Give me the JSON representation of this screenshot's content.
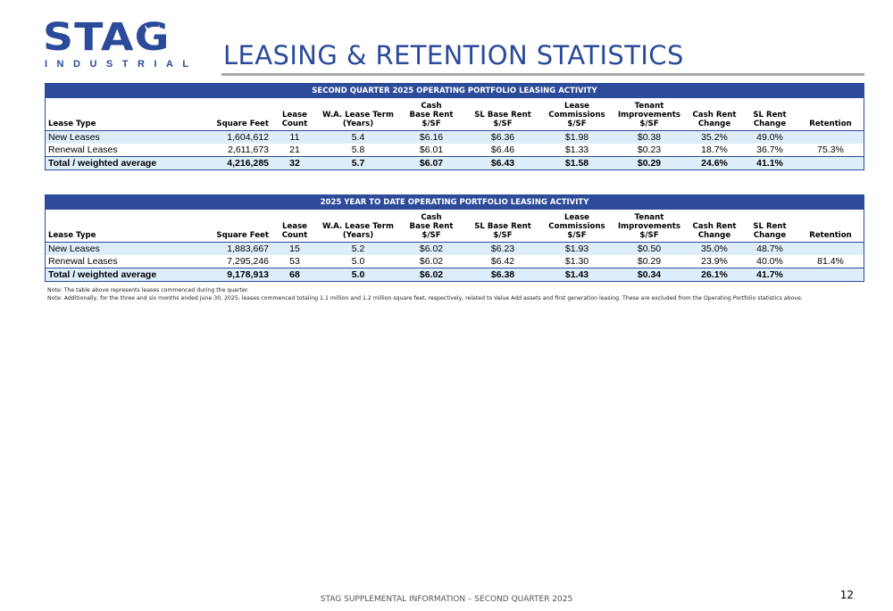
{
  "logo": {
    "wordmark": "STAG",
    "subtitle": "INDUSTRIAL"
  },
  "title": "LEASING & RETENTION STATISTICS",
  "headers": {
    "lease_type": "Lease Type",
    "square_feet": "Square Feet",
    "lease_count_1": "Lease",
    "lease_count_2": "Count",
    "term_1": "W.A. Lease Term",
    "term_2": "(Years)",
    "cash_1": "Cash",
    "cash_2": "Base Rent",
    "cash_3": "$/SF",
    "sl_1": "SL Base Rent",
    "sl_2": "$/SF",
    "comm_1": "Lease",
    "comm_2": "Commissions",
    "comm_3": "$/SF",
    "ti_1": "Tenant",
    "ti_2": "Improvements",
    "ti_3": "$/SF",
    "cash_change_1": "Cash Rent",
    "cash_change_2": "Change",
    "sl_change_1": "SL Rent",
    "sl_change_2": "Change",
    "retention": "Retention"
  },
  "tables": [
    {
      "title": "SECOND QUARTER 2025 OPERATING PORTFOLIO LEASING ACTIVITY",
      "rows": [
        {
          "type": "New Leases",
          "sf": "1,604,612",
          "count": "11",
          "term": "5.4",
          "cash": "$6.16",
          "sl": "$6.36",
          "comm": "$1.98",
          "ti": "$0.38",
          "cash_chg": "35.2%",
          "sl_chg": "49.0%",
          "ret": ""
        },
        {
          "type": "Renewal Leases",
          "sf": "2,611,673",
          "count": "21",
          "term": "5.8",
          "cash": "$6.01",
          "sl": "$6.46",
          "comm": "$1.33",
          "ti": "$0.23",
          "cash_chg": "18.7%",
          "sl_chg": "36.7%",
          "ret": "75.3%"
        },
        {
          "type": "Total / weighted average",
          "sf": "4,216,285",
          "count": "32",
          "term": "5.7",
          "cash": "$6.07",
          "sl": "$6.43",
          "comm": "$1.58",
          "ti": "$0.29",
          "cash_chg": "24.6%",
          "sl_chg": "41.1%",
          "ret": ""
        }
      ]
    },
    {
      "title": "2025 YEAR TO DATE OPERATING PORTFOLIO LEASING ACTIVITY",
      "rows": [
        {
          "type": "New Leases",
          "sf": "1,883,667",
          "count": "15",
          "term": "5.2",
          "cash": "$6.02",
          "sl": "$6.23",
          "comm": "$1.93",
          "ti": "$0.50",
          "cash_chg": "35.0%",
          "sl_chg": "48.7%",
          "ret": ""
        },
        {
          "type": "Renewal Leases",
          "sf": "7,295,246",
          "count": "53",
          "term": "5.0",
          "cash": "$6.02",
          "sl": "$6.42",
          "comm": "$1.30",
          "ti": "$0.29",
          "cash_chg": "23.9%",
          "sl_chg": "40.0%",
          "ret": "81.4%"
        },
        {
          "type": "Total / weighted average",
          "sf": "9,178,913",
          "count": "68",
          "term": "5.0",
          "cash": "$6.02",
          "sl": "$6.38",
          "comm": "$1.43",
          "ti": "$0.34",
          "cash_chg": "26.1%",
          "sl_chg": "41.7%",
          "ret": ""
        }
      ]
    }
  ],
  "notes": [
    "Note: The table above represents leases commenced during the quarter.",
    "Note: Additionally, for the three and six months ended June 30, 2025, leases commenced totaling 1.1 million and 1.2 million square feet, respectively, related to Value Add assets and first generation leasing. These are excluded from the Operating Portfolio statistics above."
  ],
  "footer": "STAG SUPPLEMENTAL INFORMATION – SECOND QUARTER 2025",
  "page_number": "12"
}
